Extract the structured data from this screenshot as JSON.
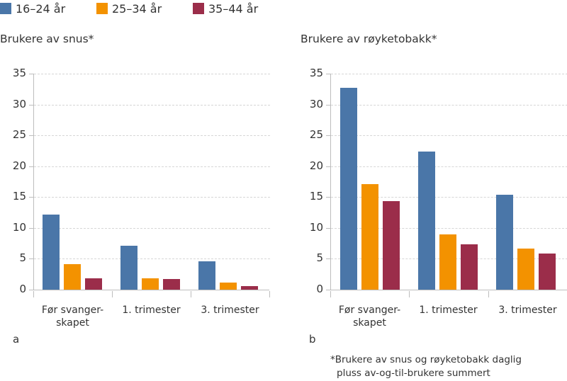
{
  "legend": [
    {
      "label": "16–24 år",
      "color": "#4a76a8"
    },
    {
      "label": "25–34 år",
      "color": "#f39200"
    },
    {
      "label": "35–44 år",
      "color": "#9b2d4a"
    }
  ],
  "panels": [
    {
      "letter": "a",
      "title": "Brukere av snus*"
    },
    {
      "letter": "b",
      "title": "Brukere av røyketobakk*"
    }
  ],
  "footnote": {
    "line1": "*Brukere av snus og røyketobakk daglig",
    "line2": "pluss av-og-til-brukere summert"
  },
  "chart_data": [
    {
      "type": "bar",
      "title": "Brukere av snus*",
      "panel": "a",
      "categories": [
        "Før svanger-\nskapet",
        "1. trimester",
        "3. trimester"
      ],
      "category_lines": [
        [
          "Før svanger-",
          "skapet"
        ],
        [
          "1. trimester"
        ],
        [
          "3. trimester"
        ]
      ],
      "series": [
        {
          "name": "16–24 år",
          "color": "#4a76a8",
          "values": [
            12.2,
            7.1,
            4.6
          ]
        },
        {
          "name": "25–34 år",
          "color": "#f39200",
          "values": [
            4.1,
            1.8,
            1.2
          ]
        },
        {
          "name": "35–44 år",
          "color": "#9b2d4a",
          "values": [
            1.8,
            1.7,
            0.6
          ]
        }
      ],
      "yticks": [
        0,
        5,
        10,
        15,
        20,
        25,
        30,
        35
      ],
      "ylim": [
        0,
        35
      ],
      "xlabel": "",
      "ylabel": "",
      "grid": true,
      "legend_position": "top"
    },
    {
      "type": "bar",
      "title": "Brukere av røyketobakk*",
      "panel": "b",
      "categories": [
        "Før svanger-\nskapet",
        "1. trimester",
        "3. trimester"
      ],
      "category_lines": [
        [
          "Før svanger-",
          "skapet"
        ],
        [
          "1. trimester"
        ],
        [
          "3. trimester"
        ]
      ],
      "series": [
        {
          "name": "16–24 år",
          "color": "#4a76a8",
          "values": [
            32.7,
            22.4,
            15.4
          ]
        },
        {
          "name": "25–34 år",
          "color": "#f39200",
          "values": [
            17.1,
            9.0,
            6.7
          ]
        },
        {
          "name": "35–44 år",
          "color": "#9b2d4a",
          "values": [
            14.3,
            7.4,
            5.9
          ]
        }
      ],
      "yticks": [
        0,
        5,
        10,
        15,
        20,
        25,
        30,
        35
      ],
      "ylim": [
        0,
        35
      ],
      "xlabel": "",
      "ylabel": "",
      "grid": true,
      "legend_position": "top"
    }
  ]
}
